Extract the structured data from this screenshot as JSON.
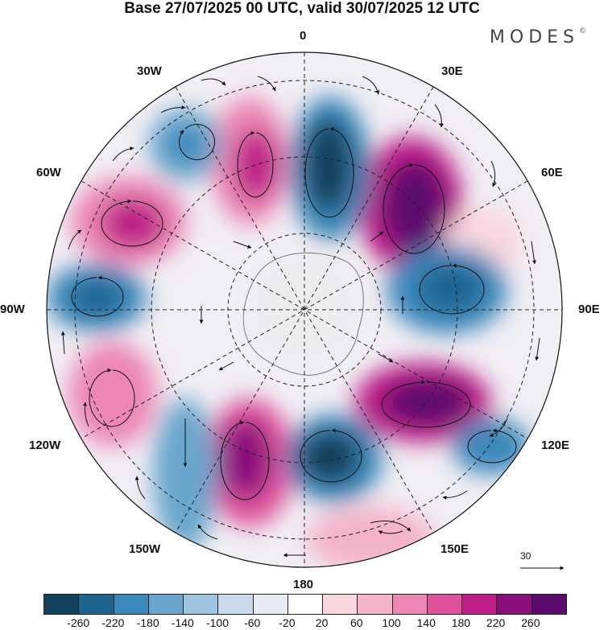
{
  "title": "Base 27/07/2025 00 UTC, valid 30/07/2025 12 UTC",
  "brand": "MODES",
  "brand_mark": "©",
  "longitude_labels": {
    "n0": "0",
    "n30e": "30E",
    "n60e": "60E",
    "n90e": "90E",
    "n120e": "120E",
    "n150e": "150E",
    "n180": "180",
    "n150w": "150W",
    "n120w": "120W",
    "n90w": "90W",
    "n60w": "60W",
    "n30w": "30W"
  },
  "reference_vector_label": "30",
  "colorbar": {
    "colors": [
      "#13405c",
      "#1f6390",
      "#3b88bb",
      "#69a6cd",
      "#9ec4df",
      "#cad9eb",
      "#e8eaf4",
      "#ffffff",
      "#f9d7df",
      "#f4b3c8",
      "#ec86b3",
      "#e0529c",
      "#bd1f87",
      "#8a0e7c",
      "#5d0a6e"
    ],
    "ticks": [
      "-260",
      "-220",
      "-180",
      "-140",
      "-100",
      "-60",
      "-20",
      "20",
      "60",
      "100",
      "140",
      "180",
      "220",
      "260"
    ]
  }
}
